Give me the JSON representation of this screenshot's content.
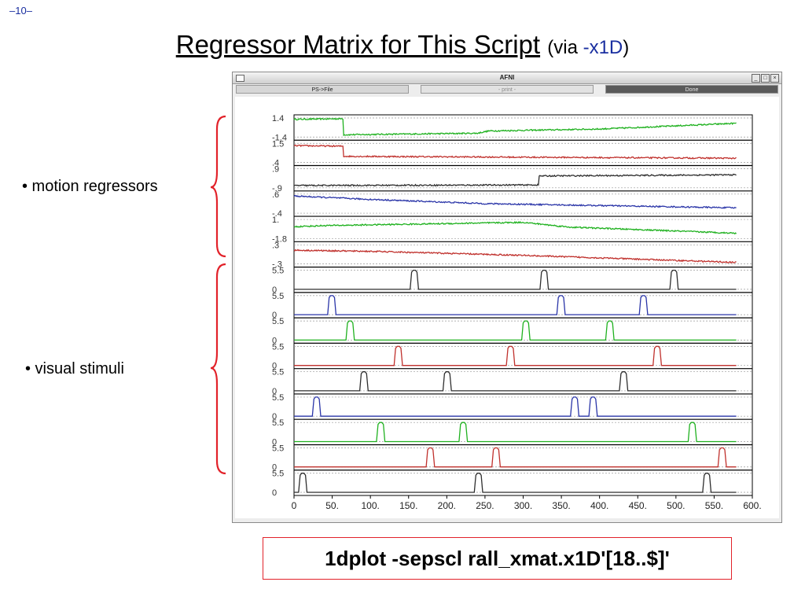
{
  "slide": {
    "page_number": "–10–",
    "title_main": "Regressor Matrix for This Script",
    "title_via": "(via ",
    "title_flag": "-x1D",
    "title_close": ")",
    "label_motion": "• motion regressors",
    "label_visual": "• visual stimuli",
    "command": "1dplot -sepscl rall_xmat.x1D'[18..$]'",
    "brace_color": "#e2222a"
  },
  "window": {
    "title": "AFNI",
    "buttons": {
      "ps_file": "PS->File",
      "print": "- print -",
      "done": "Done"
    },
    "controls": {
      "minimize": "_",
      "maximize": "□",
      "close": "×"
    }
  },
  "chart_data": {
    "type": "line",
    "xlim": [
      0,
      600
    ],
    "x_ticks": [
      "0",
      "50.",
      "100.",
      "150.",
      "200.",
      "250.",
      "300.",
      "350.",
      "400.",
      "450.",
      "500.",
      "550.",
      "600."
    ],
    "n_points": 580,
    "colors": [
      "#1fb11f",
      "#c0312d",
      "#2e2e2e",
      "#2a35a8"
    ],
    "motion_panels": [
      {
        "color": "#1fb11f",
        "ymax": "1.4",
        "ymin": "-1.4",
        "shape": [
          [
            0,
            0.93
          ],
          [
            64,
            0.96
          ],
          [
            65,
            0.12
          ],
          [
            240,
            0.2
          ],
          [
            255,
            0.32
          ],
          [
            400,
            0.42
          ],
          [
            579,
            0.72
          ]
        ]
      },
      {
        "color": "#c0312d",
        "ymax": "1.5",
        "ymin": ".4",
        "shape": [
          [
            0,
            0.88
          ],
          [
            64,
            0.85
          ],
          [
            65,
            0.32
          ],
          [
            579,
            0.22
          ]
        ]
      },
      {
        "color": "#2e2e2e",
        "ymax": ".9",
        "ymin": "-.9",
        "shape": [
          [
            0,
            0.12
          ],
          [
            320,
            0.15
          ],
          [
            321,
            0.62
          ],
          [
            579,
            0.68
          ]
        ]
      },
      {
        "color": "#2a35a8",
        "ymax": ".6",
        "ymin": "-.4",
        "shape": [
          [
            0,
            0.9
          ],
          [
            100,
            0.72
          ],
          [
            250,
            0.5
          ],
          [
            579,
            0.28
          ]
        ]
      },
      {
        "color": "#1fb11f",
        "ymax": "1.",
        "ymin": "-1.8",
        "shape": [
          [
            0,
            0.62
          ],
          [
            40,
            0.68
          ],
          [
            300,
            0.85
          ],
          [
            360,
            0.6
          ],
          [
            579,
            0.28
          ]
        ]
      },
      {
        "color": "#c0312d",
        "ymax": ".3",
        "ymin": "-.3",
        "shape": [
          [
            0,
            0.72
          ],
          [
            100,
            0.66
          ],
          [
            300,
            0.45
          ],
          [
            579,
            0.08
          ]
        ]
      }
    ],
    "stim_panels": [
      {
        "color": "#2e2e2e",
        "ymax": "5.5",
        "ymin": "0",
        "onsets": [
          152,
          322,
          492
        ]
      },
      {
        "color": "#2a35a8",
        "ymax": "5.5",
        "ymin": "0",
        "onsets": [
          44,
          344,
          452
        ]
      },
      {
        "color": "#1fb11f",
        "ymax": "5.5",
        "ymin": "0",
        "onsets": [
          68,
          298,
          408
        ]
      },
      {
        "color": "#c0312d",
        "ymax": "5.5",
        "ymin": "0",
        "onsets": [
          131,
          278,
          470
        ]
      },
      {
        "color": "#2e2e2e",
        "ymax": "5.5",
        "ymin": "0",
        "onsets": [
          86,
          195,
          426
        ]
      },
      {
        "color": "#2a35a8",
        "ymax": "5.5",
        "ymin": "0",
        "onsets": [
          24,
          362,
          386
        ]
      },
      {
        "color": "#1fb11f",
        "ymax": "5.5",
        "ymin": "0",
        "onsets": [
          108,
          216,
          516
        ]
      },
      {
        "color": "#c0312d",
        "ymax": "5.5",
        "ymin": "0",
        "onsets": [
          173,
          259,
          555
        ]
      },
      {
        "color": "#2e2e2e",
        "ymax": "5.5",
        "ymin": "0",
        "onsets": [
          6,
          236,
          535
        ]
      }
    ]
  }
}
